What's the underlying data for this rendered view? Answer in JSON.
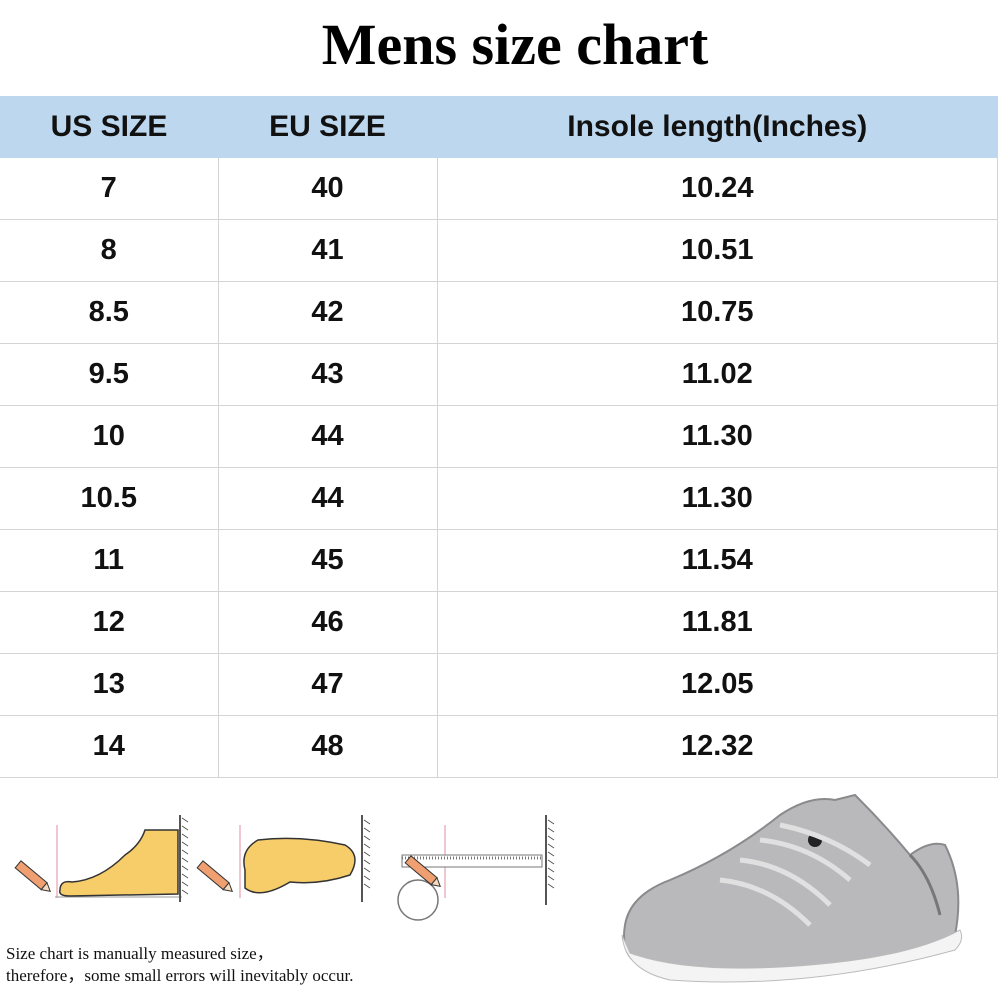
{
  "title": "Mens size chart",
  "table": {
    "headers": [
      "US SIZE",
      "EU SIZE",
      "Insole length(Inches)"
    ],
    "rows": [
      [
        "7",
        "40",
        "10.24"
      ],
      [
        "8",
        "41",
        "10.51"
      ],
      [
        "8.5",
        "42",
        "10.75"
      ],
      [
        "9.5",
        "43",
        "11.02"
      ],
      [
        "10",
        "44",
        "11.30"
      ],
      [
        "10.5",
        "44",
        "11.30"
      ],
      [
        "11",
        "45",
        "11.54"
      ],
      [
        "12",
        "46",
        "11.81"
      ],
      [
        "13",
        "47",
        "12.05"
      ],
      [
        "14",
        "48",
        "12.32"
      ]
    ]
  },
  "note": {
    "line1": "Size chart is manually measured size，",
    "line2": "therefore，some small errors will inevitably occur."
  },
  "colors": {
    "header_bg": "#bdd7ee",
    "grid": "#d4d4d4"
  },
  "icons": [
    "foot-side-measure-icon",
    "foot-top-measure-icon",
    "ruler-tape-measure-icon",
    "shoe-image"
  ]
}
